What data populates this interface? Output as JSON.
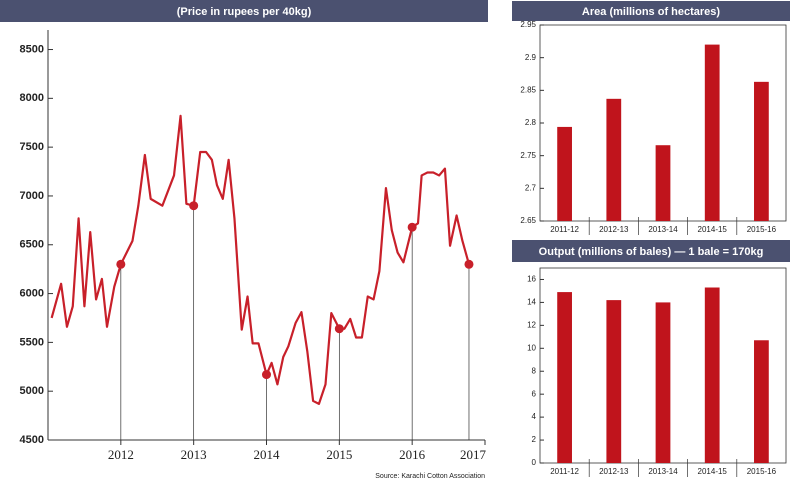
{
  "chart_data": [
    {
      "type": "line",
      "title": "(Price in rupees per 40kg)",
      "source": "Source: Karachi Cotton Association",
      "x": [
        2011.05,
        2011.18,
        2011.26,
        2011.34,
        2011.42,
        2011.5,
        2011.58,
        2011.66,
        2011.74,
        2011.81,
        2011.91,
        2012,
        2012.16,
        2012.24,
        2012.33,
        2012.41,
        2012.57,
        2012.73,
        2012.82,
        2012.9,
        2013,
        2013.09,
        2013.17,
        2013.25,
        2013.32,
        2013.4,
        2013.48,
        2013.56,
        2013.66,
        2013.74,
        2013.81,
        2013.89,
        2014,
        2014.07,
        2014.15,
        2014.23,
        2014.3,
        2014.4,
        2014.48,
        2014.56,
        2014.64,
        2014.72,
        2014.81,
        2014.89,
        2015,
        2015.07,
        2015.15,
        2015.23,
        2015.31,
        2015.39,
        2015.47,
        2015.55,
        2015.64,
        2015.72,
        2015.8,
        2015.88,
        2016,
        2016.08,
        2016.13,
        2016.21,
        2016.29,
        2016.37,
        2016.45,
        2016.52,
        2016.61,
        2016.69,
        2016.78
      ],
      "values": [
        5750,
        6100,
        5660,
        5870,
        6770,
        5870,
        6630,
        5940,
        6150,
        5660,
        6070,
        6300,
        6540,
        6900,
        7420,
        6970,
        6900,
        7210,
        7820,
        6920,
        6900,
        7450,
        7450,
        7370,
        7110,
        6970,
        7370,
        6770,
        5630,
        5970,
        5490,
        5490,
        5170,
        5290,
        5070,
        5350,
        5460,
        5700,
        5810,
        5410,
        4900,
        4870,
        5070,
        5800,
        5640,
        5640,
        5740,
        5550,
        5550,
        5970,
        5940,
        6230,
        7080,
        6650,
        6420,
        6320,
        6680,
        6720,
        7210,
        7240,
        7240,
        7210,
        7280,
        6490,
        6800,
        6540,
        6300
      ],
      "color": "#c8202a",
      "xlim": [
        2011,
        2017
      ],
      "xticks": [
        2012,
        2013,
        2014,
        2015,
        2016,
        2017
      ],
      "ylim": [
        4500,
        8700
      ],
      "yticks": [
        4500,
        5000,
        5500,
        6000,
        6500,
        7000,
        7500,
        8000,
        8500
      ]
    },
    {
      "type": "bar",
      "title": "Area (millions of hectares)",
      "categories": [
        "2011-12",
        "2012-13",
        "2013-14",
        "2014-15",
        "2015-16"
      ],
      "values": [
        2.794,
        2.837,
        2.766,
        2.92,
        2.863
      ],
      "color": "#c0141c",
      "ylim": [
        2.65,
        2.95
      ],
      "yticks": [
        2.65,
        2.7,
        2.75,
        2.8,
        2.85,
        2.9,
        2.95
      ]
    },
    {
      "type": "bar",
      "title": "Output (millions of bales) — 1 bale = 170kg",
      "categories": [
        "2011-12",
        "2012-13",
        "2013-14",
        "2014-15",
        "2015-16"
      ],
      "values": [
        14.9,
        14.2,
        14.0,
        15.3,
        10.7
      ],
      "color": "#c0141c",
      "ylim": [
        0,
        17
      ],
      "yticks": [
        0,
        2,
        4,
        6,
        8,
        10,
        12,
        14,
        16
      ]
    }
  ]
}
